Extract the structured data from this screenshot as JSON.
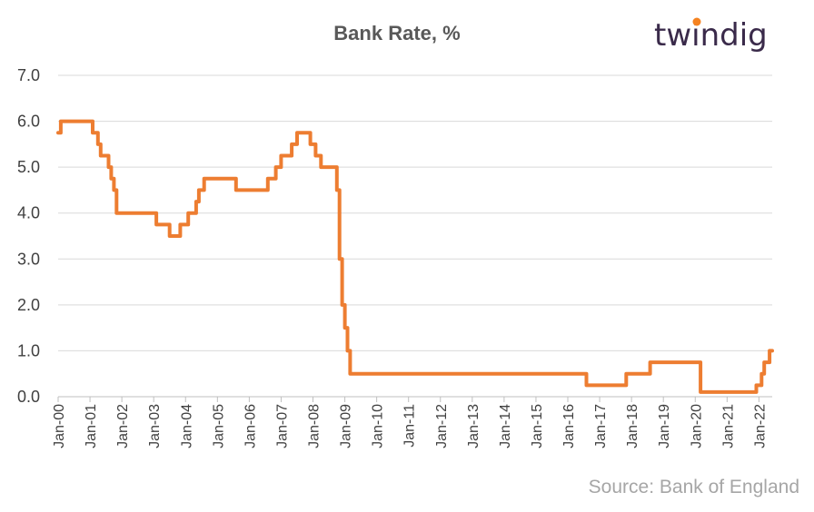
{
  "brand": {
    "logo_text": "twindig",
    "accent": "#f58220",
    "text_color": "#3a2a4a"
  },
  "footer": {
    "source": "Source: Bank of England"
  },
  "chart_data": {
    "type": "line",
    "title": "Bank Rate, %",
    "xlabel": "",
    "ylabel": "",
    "ylim": [
      0,
      7
    ],
    "yticks": [
      "0.0",
      "1.0",
      "2.0",
      "3.0",
      "4.0",
      "5.0",
      "6.0",
      "7.0"
    ],
    "xlim": [
      "2000-01",
      "2022-06"
    ],
    "xticks": [
      "Jan-00",
      "Jan-01",
      "Jan-02",
      "Jan-03",
      "Jan-04",
      "Jan-05",
      "Jan-06",
      "Jan-07",
      "Jan-08",
      "Jan-09",
      "Jan-10",
      "Jan-11",
      "Jan-12",
      "Jan-13",
      "Jan-14",
      "Jan-15",
      "Jan-16",
      "Jan-17",
      "Jan-18",
      "Jan-19",
      "Jan-20",
      "Jan-21",
      "Jan-22"
    ],
    "grid": true,
    "legend": "none",
    "line_color": "#ed7d31",
    "series": [
      {
        "x": [
          "2000-01",
          "2000-02",
          "2001-02",
          "2001-04",
          "2001-05",
          "2001-08",
          "2001-09",
          "2001-10",
          "2001-11",
          "2003-02",
          "2003-07",
          "2003-11",
          "2004-02",
          "2004-05",
          "2004-06",
          "2004-08",
          "2005-08",
          "2006-08",
          "2006-11",
          "2007-01",
          "2007-05",
          "2007-07",
          "2007-12",
          "2008-02",
          "2008-04",
          "2008-10",
          "2008-11",
          "2008-12",
          "2009-01",
          "2009-02",
          "2009-03",
          "2016-08",
          "2017-11",
          "2018-08",
          "2020-03",
          "2020-03",
          "2021-12",
          "2022-02",
          "2022-03",
          "2022-05"
        ],
        "values": [
          5.75,
          6.0,
          5.75,
          5.5,
          5.25,
          5.0,
          4.75,
          4.5,
          4.0,
          3.75,
          3.5,
          3.75,
          4.0,
          4.25,
          4.5,
          4.75,
          4.5,
          4.75,
          5.0,
          5.25,
          5.5,
          5.75,
          5.5,
          5.25,
          5.0,
          4.5,
          3.0,
          2.0,
          1.5,
          1.0,
          0.5,
          0.25,
          0.5,
          0.75,
          0.25,
          0.1,
          0.25,
          0.5,
          0.75,
          1.0
        ]
      }
    ]
  }
}
